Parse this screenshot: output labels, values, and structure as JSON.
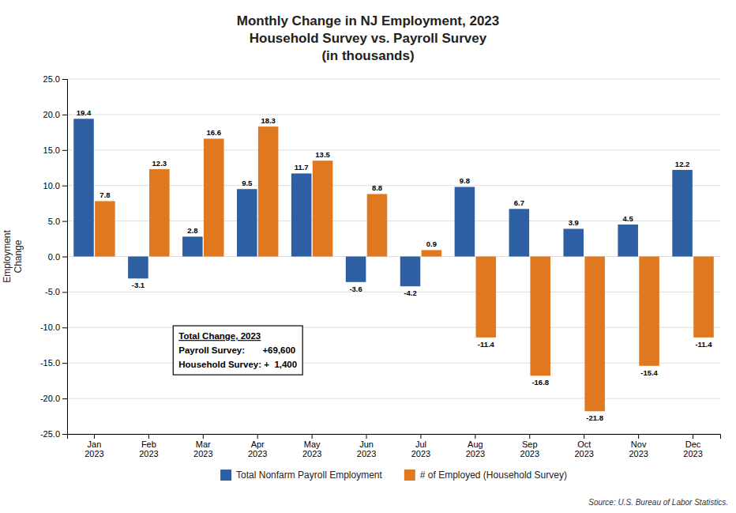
{
  "chart_data": {
    "type": "bar",
    "title": "Monthly Change in NJ Employment, 2023\nHousehold Survey vs. Payroll Survey\n(in thousands)",
    "y_label": "Employment\nChange",
    "categories": [
      "Jan\n2023",
      "Feb\n2023",
      "Mar\n2023",
      "Apr\n2023",
      "May\n2023",
      "Jun\n2023",
      "Jul\n2023",
      "Aug\n2023",
      "Sep\n2023",
      "Oct\n2023",
      "Nov\n2023",
      "Dec\n2023"
    ],
    "series": [
      {
        "name": "Total Nonfarm Payroll Employment",
        "color": "#2E5FA3",
        "values": [
          19.4,
          -3.1,
          2.8,
          9.5,
          11.7,
          -3.6,
          -4.2,
          9.8,
          6.7,
          3.9,
          4.5,
          12.2
        ]
      },
      {
        "name": "# of Employed (Household Survey)",
        "color": "#E07820",
        "values": [
          7.8,
          12.3,
          16.6,
          18.3,
          13.5,
          8.8,
          0.9,
          -11.4,
          -16.8,
          -21.8,
          -15.4,
          -11.4
        ]
      }
    ],
    "ylim": [
      -25.0,
      25.0
    ],
    "yticks": [
      {
        "value": -25.0,
        "label": "-25.0"
      },
      {
        "value": -20.0,
        "label": "-20.0"
      },
      {
        "value": -15.0,
        "label": "-15.0"
      },
      {
        "value": -10.0,
        "label": "-10.0"
      },
      {
        "value": -5.0,
        "label": "-5.0"
      },
      {
        "value": 0.0,
        "label": "0.0"
      },
      {
        "value": 5.0,
        "label": "5.0"
      },
      {
        "value": 10.0,
        "label": "10.0"
      },
      {
        "value": 15.0,
        "label": "15.0"
      },
      {
        "value": 20.0,
        "label": "20.0"
      },
      {
        "value": 25.0,
        "label": "25.0"
      }
    ],
    "grid": true,
    "legend": "bottom",
    "data_labels": true,
    "annotations": [
      "Total Change, 2023",
      "Payroll Survey:       +69,600",
      "Household Survey: +  1,400"
    ],
    "source": "Source: U.S. Bureau of Labor Statistics."
  }
}
